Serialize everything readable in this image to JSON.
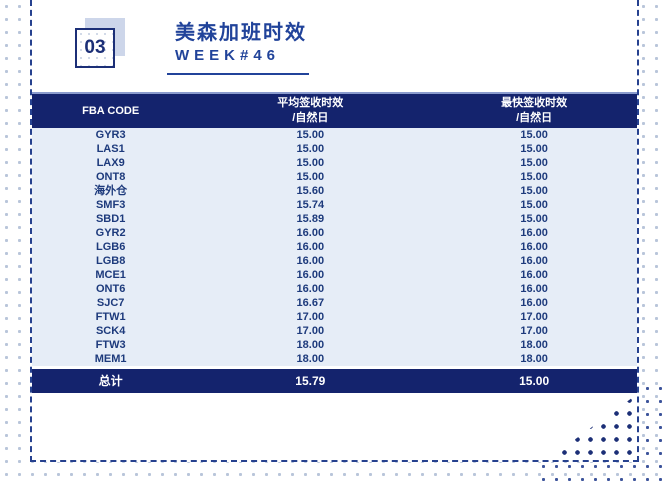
{
  "header": {
    "badge": "03",
    "title": "美森加班时效",
    "week": "WEEK#46"
  },
  "table": {
    "columns": {
      "code": "FBA CODE",
      "avg_line1": "平均签收时效",
      "avg_line2": "/自然日",
      "fast_line1": "最快签收时效",
      "fast_line2": "/自然日"
    },
    "rows": [
      {
        "code": "GYR3",
        "avg": "15.00",
        "fastest": "15.00"
      },
      {
        "code": "LAS1",
        "avg": "15.00",
        "fastest": "15.00"
      },
      {
        "code": "LAX9",
        "avg": "15.00",
        "fastest": "15.00"
      },
      {
        "code": "ONT8",
        "avg": "15.00",
        "fastest": "15.00"
      },
      {
        "code": "海外仓",
        "avg": "15.60",
        "fastest": "15.00"
      },
      {
        "code": "SMF3",
        "avg": "15.74",
        "fastest": "15.00"
      },
      {
        "code": "SBD1",
        "avg": "15.89",
        "fastest": "15.00"
      },
      {
        "code": "GYR2",
        "avg": "16.00",
        "fastest": "16.00"
      },
      {
        "code": "LGB6",
        "avg": "16.00",
        "fastest": "16.00"
      },
      {
        "code": "LGB8",
        "avg": "16.00",
        "fastest": "16.00"
      },
      {
        "code": "MCE1",
        "avg": "16.00",
        "fastest": "16.00"
      },
      {
        "code": "ONT6",
        "avg": "16.00",
        "fastest": "16.00"
      },
      {
        "code": "SJC7",
        "avg": "16.67",
        "fastest": "16.00"
      },
      {
        "code": "FTW1",
        "avg": "17.00",
        "fastest": "17.00"
      },
      {
        "code": "SCK4",
        "avg": "17.00",
        "fastest": "17.00"
      },
      {
        "code": "FTW3",
        "avg": "18.00",
        "fastest": "18.00"
      },
      {
        "code": "MEM1",
        "avg": "18.00",
        "fastest": "18.00"
      }
    ],
    "total": {
      "code": "总计",
      "avg": "15.79",
      "fastest": "15.00"
    }
  },
  "colors": {
    "navy": "#14236d",
    "title_blue": "#21439a",
    "row_bg": "#e6edf7",
    "row_text": "#1d3a7c",
    "border_dashed": "#26418f",
    "badge_shadow": "#cdd6ea"
  }
}
